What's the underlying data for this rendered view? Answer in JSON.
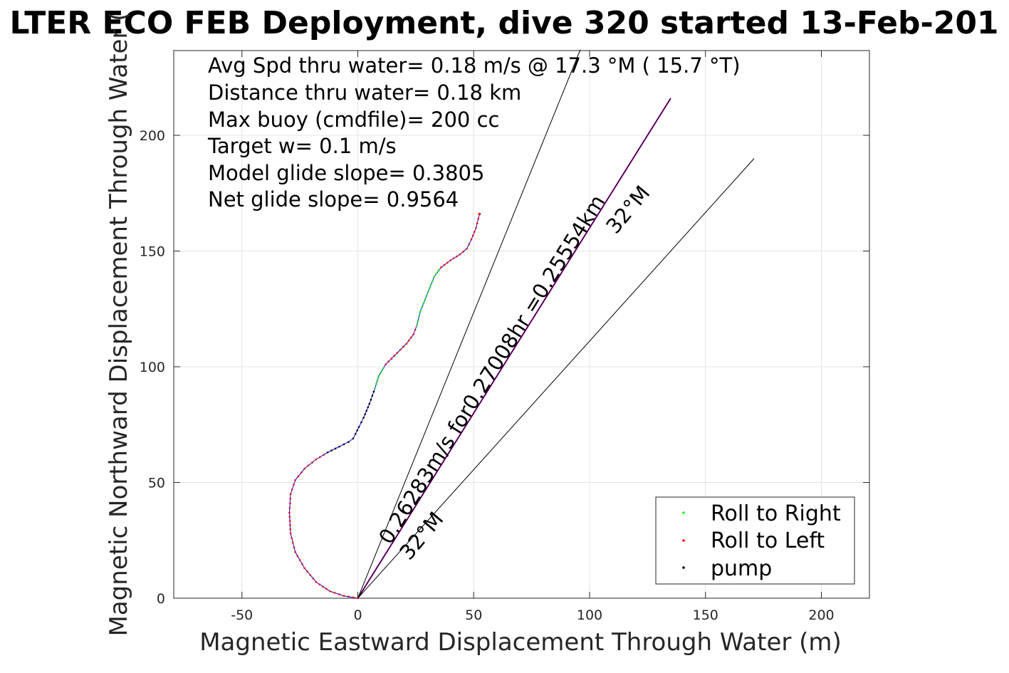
{
  "chart_data": {
    "type": "scatter",
    "title": "LTER ECO FEB Deployment, dive 320 started 13-Feb-201",
    "xlabel": "Magnetic Eastward Displacement Through Water (m)",
    "ylabel": "Magnetic Northward Displacement Through Water (",
    "xlim": [
      -80,
      220
    ],
    "ylim": [
      -2,
      237
    ],
    "xticks": [
      -50,
      0,
      50,
      100,
      150,
      200
    ],
    "xtick_labels": [
      "-50",
      "0",
      "50",
      "100",
      "150",
      "200"
    ],
    "yticks": [
      0,
      50,
      100,
      150,
      200
    ],
    "ytick_labels": [
      "0",
      "50",
      "100",
      "150",
      "200"
    ],
    "grid": true,
    "legend_position": "bottom-right",
    "info_lines": [
      "Avg Spd thru water=  0.18 m/s @  17.3 °M ( 15.7 °T)",
      "Distance thru water=  0.18 km",
      "Max buoy (cmdfile)= 200 cc",
      "Target w= 0.1 m/s",
      "Model glide slope= 0.3805",
      "Net glide slope= 0.9564"
    ],
    "annotations": {
      "current_text": "0.26283m/s for0.27008hr =0.25554km",
      "heading_upper": "32°M",
      "heading_lower": "32°M"
    },
    "series": [
      {
        "name": "Roll to Right",
        "color": "#00ff00",
        "marker": "dot"
      },
      {
        "name": "Roll to Left",
        "color": "#ff0000",
        "marker": "dot"
      },
      {
        "name": "pump",
        "color": "#000000",
        "marker": "dot"
      }
    ],
    "track": {
      "color": "#0000ff",
      "points": [
        [
          0,
          0
        ],
        [
          -6,
          1
        ],
        [
          -12,
          3
        ],
        [
          -18,
          7
        ],
        [
          -23,
          13
        ],
        [
          -27,
          20
        ],
        [
          -29,
          28
        ],
        [
          -29.5,
          37
        ],
        [
          -29,
          45
        ],
        [
          -27,
          51
        ],
        [
          -23,
          56
        ],
        [
          -18,
          60
        ],
        [
          -13,
          63
        ],
        [
          -8,
          65.5
        ],
        [
          -4,
          67.5
        ],
        [
          -2,
          69
        ],
        [
          -1,
          71
        ],
        [
          0.5,
          74
        ],
        [
          2.5,
          78
        ],
        [
          5,
          84
        ],
        [
          7.5,
          91
        ],
        [
          9,
          96
        ],
        [
          12,
          101
        ],
        [
          17,
          106
        ],
        [
          21,
          110
        ],
        [
          24,
          114
        ],
        [
          25.5,
          118
        ],
        [
          27,
          124
        ],
        [
          29,
          129
        ],
        [
          31,
          134
        ],
        [
          33,
          139
        ],
        [
          36,
          143
        ],
        [
          40,
          146
        ],
        [
          44,
          148.5
        ],
        [
          47,
          151
        ],
        [
          49,
          155
        ],
        [
          51,
          160
        ],
        [
          52.5,
          166
        ]
      ],
      "marker_segments": [
        {
          "series": "Roll to Left",
          "range": [
            0,
            12
          ]
        },
        {
          "series": "pump",
          "range": [
            12,
            20
          ]
        },
        {
          "series": "Roll to Right",
          "range": [
            20,
            22
          ]
        },
        {
          "series": "Roll to Left",
          "range": [
            22,
            26
          ]
        },
        {
          "series": "Roll to Right",
          "range": [
            26,
            31
          ]
        },
        {
          "series": "Roll to Left",
          "range": [
            31,
            37
          ]
        }
      ]
    },
    "reference_lines": [
      {
        "name": "current-vector",
        "color": "#cc00cc",
        "points": [
          [
            0,
            0
          ],
          [
            135,
            216
          ]
        ]
      },
      {
        "name": "heading-line",
        "color": "#000000",
        "points": [
          [
            0,
            0
          ],
          [
            135,
            216
          ]
        ]
      },
      {
        "name": "steep-line",
        "color": "#000000",
        "points": [
          [
            0,
            0
          ],
          [
            96,
            237
          ]
        ]
      },
      {
        "name": "shallow-line",
        "color": "#000000",
        "points": [
          [
            0,
            0
          ],
          [
            171,
            190
          ]
        ]
      }
    ]
  }
}
